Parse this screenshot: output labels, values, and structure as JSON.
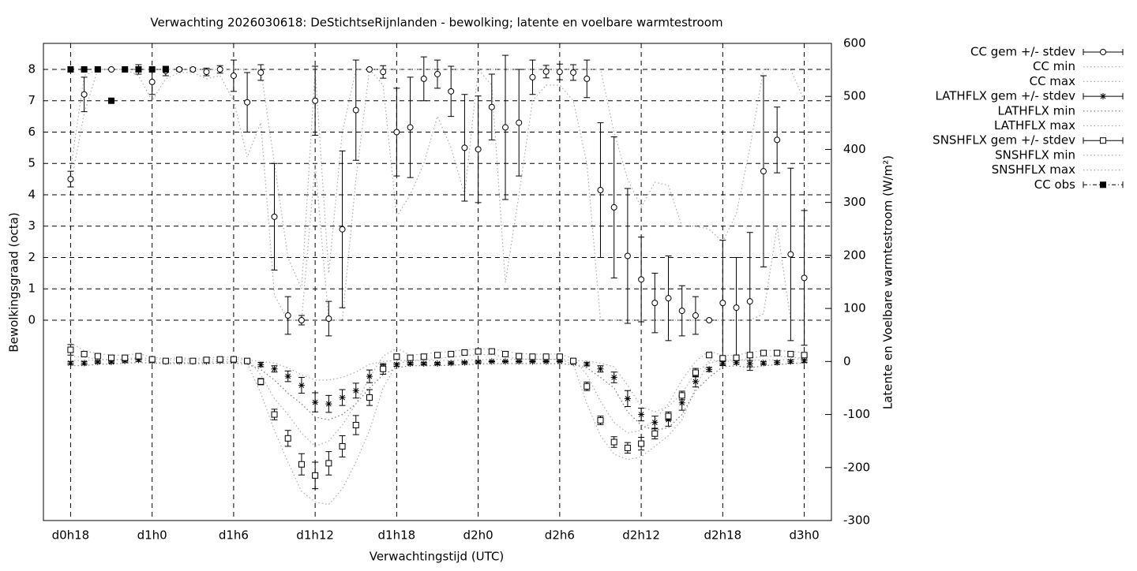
{
  "chart_data": {
    "type": "line",
    "title": "Verwachting 2026030618: DeStichtseRijnlanden - bewolking; latente en voelbare warmtestroom",
    "x_label": "Verwachtingstijd (UTC)",
    "y_label": "Bewolkingsgraad (octa)",
    "y2_label": "Latente en Voelbare warmtestroom (W/m²)",
    "x": [
      0,
      1,
      2,
      3,
      4,
      5,
      6,
      7,
      8,
      9,
      10,
      11,
      12,
      13,
      14,
      15,
      16,
      17,
      18,
      19,
      20,
      21,
      22,
      23,
      24,
      25,
      26,
      27,
      28,
      29,
      30,
      31,
      32,
      33,
      34,
      35,
      36,
      37,
      38,
      39,
      40,
      41,
      42,
      43,
      44,
      45,
      46,
      47,
      48,
      49,
      50,
      51,
      52,
      53,
      54
    ],
    "xlim": [
      -2,
      56
    ],
    "xticks": [
      {
        "value": 0,
        "label": "d0h18"
      },
      {
        "value": 6,
        "label": "d1h0"
      },
      {
        "value": 12,
        "label": "d1h6"
      },
      {
        "value": 18,
        "label": "d1h12"
      },
      {
        "value": 24,
        "label": "d1h18"
      },
      {
        "value": 30,
        "label": "d2h0"
      },
      {
        "value": 36,
        "label": "d2h6"
      },
      {
        "value": 42,
        "label": "d2h12"
      },
      {
        "value": 48,
        "label": "d2h18"
      },
      {
        "value": 54,
        "label": "d3h0"
      }
    ],
    "ylim": [
      -6.39,
      8.83
    ],
    "yticks": [
      0,
      1,
      2,
      3,
      4,
      5,
      6,
      7,
      8
    ],
    "y2lim": [
      -300,
      600
    ],
    "y2ticks": [
      -300,
      -200,
      -100,
      0,
      100,
      200,
      300,
      400,
      500,
      600
    ],
    "grid": true,
    "legend": "outside-right-top",
    "series": [
      {
        "name": "CC gem +/- stdev",
        "color": "#000000",
        "style": "errorbars",
        "marker": "circle",
        "values": [
          4.5,
          7.2,
          8,
          8,
          8,
          8,
          7.6,
          7.95,
          8,
          8,
          7.92,
          8,
          7.8,
          6.95,
          7.9,
          3.3,
          0.15,
          0,
          7,
          0.05,
          2.9,
          6.7,
          8,
          7.92,
          6,
          6.15,
          7.7,
          7.85,
          7.3,
          5.5,
          5.45,
          6.8,
          6.15,
          6.3,
          7.75,
          7.93,
          7.92,
          7.9,
          7.7,
          4.15,
          3.6,
          2.05,
          1.3,
          0.55,
          0.7,
          0.3,
          0.15,
          0,
          0.55,
          0.4,
          0.6,
          4.75,
          5.75,
          2.1,
          1.35
        ],
        "stdev": [
          0.25,
          0.55,
          0,
          0,
          0,
          0.15,
          0.4,
          0.15,
          0.05,
          0.05,
          0.12,
          0.12,
          0.5,
          0.95,
          0.25,
          1.7,
          0.6,
          0.15,
          1.1,
          0.55,
          2.5,
          1.6,
          0,
          0.2,
          1.4,
          1.6,
          0.7,
          0.45,
          0.8,
          1.7,
          1.7,
          1.05,
          2.3,
          1.7,
          0.55,
          0.2,
          0.25,
          0.25,
          0.6,
          2.15,
          2.25,
          2.15,
          1.35,
          0.95,
          1.35,
          0.8,
          0.6,
          0,
          2,
          1.6,
          2.2,
          3.05,
          1.05,
          2.75,
          2.15
        ]
      },
      {
        "name": "CC min",
        "color": "#aaaaaa",
        "style": "dotted",
        "values": [
          4.3,
          6.6,
          8,
          8,
          8,
          7.8,
          7,
          7.7,
          7.9,
          7.9,
          7.7,
          7.8,
          7,
          5.2,
          6.3,
          0.8,
          0,
          0,
          5,
          0,
          0,
          4.5,
          8,
          7.5,
          3.3,
          4,
          5,
          6.5,
          5.5,
          4,
          8,
          7.5,
          1.2,
          4,
          7,
          7.5,
          7.5,
          7,
          5,
          0,
          0,
          0,
          0,
          0,
          0,
          0,
          0,
          0,
          0,
          0,
          0,
          0.2,
          3,
          0,
          0
        ]
      },
      {
        "name": "CC max",
        "color": "#aaaaaa",
        "style": "dotted",
        "values": [
          4.8,
          7.8,
          8,
          8,
          8,
          8,
          8,
          8,
          8,
          8,
          8,
          8,
          8,
          8,
          8,
          5,
          2,
          1,
          8,
          1.5,
          6,
          8,
          8,
          8,
          8,
          8,
          8,
          8,
          8,
          8,
          8,
          8,
          8,
          8,
          8,
          8,
          8,
          8,
          8,
          8,
          6,
          4.5,
          3.6,
          4.4,
          4.3,
          3,
          3,
          2.9,
          2.5,
          3.4,
          5.5,
          8,
          8,
          8,
          7
        ]
      },
      {
        "name": "LATHFLX gem +/- stdev",
        "color": "#000000",
        "style": "errorbars",
        "marker": "asterisk",
        "axis": "y2",
        "values": [
          -3,
          -3,
          -1,
          -1,
          1,
          3,
          1,
          0,
          0,
          0,
          0,
          1,
          1,
          0,
          -6,
          -14,
          -28,
          -45,
          -77,
          -80,
          -68,
          -55,
          -28,
          -11,
          -6,
          -4,
          -4,
          -4,
          -3,
          -2,
          -1,
          0,
          0,
          0,
          0,
          0,
          0,
          -2,
          -5,
          -14,
          -30,
          -70,
          -100,
          -115,
          -110,
          -78,
          -38,
          -15,
          -3,
          -2,
          -4,
          -3,
          -2,
          0,
          1
        ],
        "stdev": [
          3,
          3,
          2,
          2,
          2,
          3,
          2,
          1,
          1,
          1,
          1,
          2,
          2,
          2,
          4,
          6,
          10,
          15,
          18,
          16,
          15,
          14,
          12,
          5,
          3,
          2,
          2,
          2,
          2,
          2,
          2,
          1,
          1,
          1,
          1,
          1,
          1,
          2,
          3,
          6,
          10,
          15,
          12,
          12,
          12,
          14,
          10,
          4,
          3,
          3,
          6,
          3,
          3,
          3,
          3
        ]
      },
      {
        "name": "LATHFLX min",
        "color": "#777777",
        "style": "dotted",
        "axis": "y2",
        "values": [
          -8,
          -8,
          -5,
          -5,
          -3,
          -2,
          -3,
          -4,
          -4,
          -4,
          -4,
          -3,
          -3,
          -5,
          -15,
          -35,
          -60,
          -80,
          -105,
          -110,
          -100,
          -80,
          -50,
          -25,
          -12,
          -8,
          -8,
          -8,
          -7,
          -6,
          -5,
          -4,
          -4,
          -4,
          -4,
          -4,
          -4,
          -6,
          -12,
          -30,
          -50,
          -95,
          -120,
          -130,
          -125,
          -100,
          -55,
          -30,
          -10,
          -8,
          -12,
          -8,
          -6,
          -4,
          -3
        ]
      },
      {
        "name": "LATHFLX max",
        "color": "#aaaaaa",
        "style": "dotted",
        "axis": "y2",
        "values": [
          2,
          2,
          3,
          3,
          5,
          7,
          5,
          3,
          3,
          3,
          3,
          4,
          4,
          3,
          0,
          -3,
          -12,
          -25,
          -35,
          -35,
          -30,
          -20,
          -5,
          0,
          2,
          2,
          2,
          2,
          2,
          3,
          3,
          4,
          4,
          4,
          4,
          4,
          4,
          2,
          1,
          -3,
          -10,
          -45,
          -85,
          -95,
          -85,
          -60,
          -20,
          -3,
          3,
          3,
          2,
          3,
          3,
          4,
          5
        ]
      },
      {
        "name": "SNSHFLX gem +/- stdev",
        "color": "#000000",
        "style": "errorbars",
        "marker": "square",
        "axis": "y2",
        "values": [
          22,
          14,
          10,
          7,
          7,
          10,
          4,
          1,
          3,
          1,
          3,
          4,
          4,
          1,
          -38,
          -100,
          -145,
          -194,
          -215,
          -192,
          -160,
          -120,
          -68,
          -14,
          9,
          7,
          9,
          12,
          14,
          17,
          19,
          19,
          14,
          10,
          9,
          9,
          9,
          1,
          -47,
          -111,
          -152,
          -163,
          -155,
          -136,
          -103,
          -64,
          -21,
          12,
          6,
          7,
          12,
          16,
          16,
          14,
          12
        ],
        "stdev": [
          10,
          4,
          3,
          3,
          3,
          4,
          3,
          2,
          2,
          2,
          2,
          3,
          3,
          2,
          6,
          10,
          15,
          20,
          25,
          22,
          20,
          18,
          15,
          10,
          5,
          3,
          3,
          3,
          3,
          3,
          3,
          3,
          3,
          3,
          3,
          3,
          3,
          3,
          8,
          8,
          10,
          10,
          12,
          10,
          8,
          8,
          8,
          3,
          3,
          3,
          3,
          3,
          3,
          3,
          3
        ]
      },
      {
        "name": "SNSHFLX min",
        "color": "#aaaaaa",
        "style": "dotted",
        "axis": "y2",
        "values": [
          10,
          8,
          5,
          3,
          3,
          5,
          0,
          -3,
          -1,
          -3,
          -1,
          0,
          0,
          -3,
          -60,
          -130,
          -190,
          -245,
          -265,
          -270,
          -240,
          -190,
          -130,
          -50,
          -5,
          2,
          3,
          6,
          8,
          11,
          13,
          13,
          8,
          5,
          4,
          4,
          4,
          -5,
          -80,
          -140,
          -175,
          -185,
          -180,
          -160,
          -140,
          -110,
          -50,
          3,
          0,
          1,
          6,
          10,
          10,
          8,
          6
        ]
      },
      {
        "name": "SNSHFLX max",
        "color": "#aaaaaa",
        "style": "dotted",
        "axis": "y2",
        "values": [
          35,
          20,
          15,
          12,
          12,
          15,
          8,
          5,
          7,
          5,
          7,
          8,
          8,
          5,
          -25,
          -70,
          -100,
          -135,
          -160,
          -150,
          -120,
          -80,
          -30,
          10,
          25,
          12,
          14,
          17,
          19,
          22,
          24,
          24,
          19,
          15,
          14,
          14,
          14,
          6,
          -25,
          -75,
          -115,
          -135,
          -130,
          -110,
          -80,
          -35,
          0,
          20,
          11,
          12,
          17,
          21,
          21,
          19,
          17
        ]
      },
      {
        "name": "CC obs",
        "color": "#000000",
        "style": "points",
        "marker": "filled-square",
        "x": [
          0,
          1,
          2,
          3,
          4,
          5,
          6,
          7
        ],
        "values": [
          8,
          8,
          8,
          7,
          8,
          8,
          8,
          8
        ]
      }
    ]
  }
}
